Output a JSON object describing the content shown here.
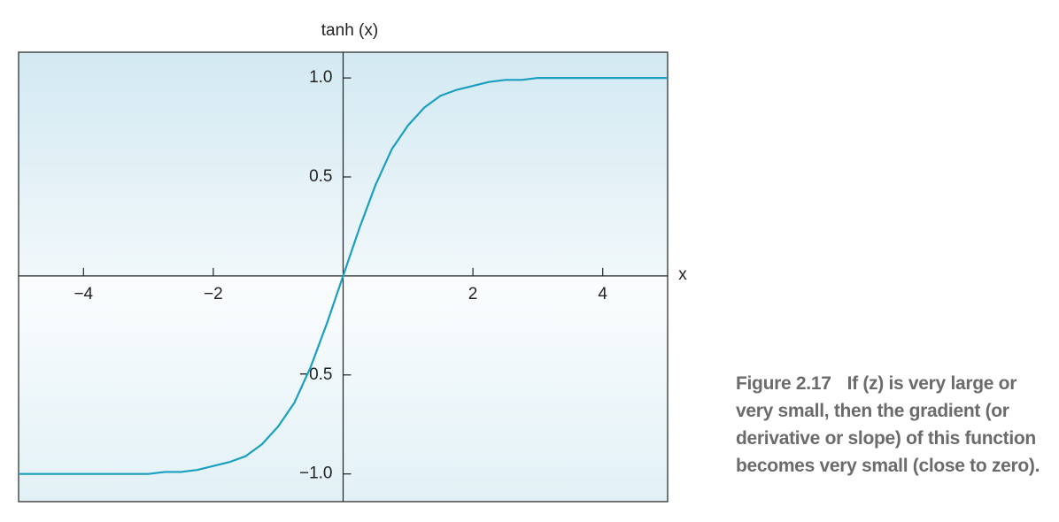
{
  "chart_data": {
    "type": "line",
    "y_label": "tanh (x)",
    "x_label": "x",
    "color": "#1a9fc0",
    "x": [
      -5,
      -4.75,
      -4.5,
      -4.25,
      -4,
      -3.75,
      -3.5,
      -3.25,
      -3,
      -2.75,
      -2.5,
      -2.25,
      -2,
      -1.75,
      -1.5,
      -1.25,
      -1,
      -0.75,
      -0.5,
      -0.25,
      0,
      0.25,
      0.5,
      0.75,
      1,
      1.25,
      1.5,
      1.75,
      2,
      2.25,
      2.5,
      2.75,
      3,
      3.25,
      3.5,
      3.75,
      4,
      4.25,
      4.5,
      4.75,
      5
    ],
    "values": [
      -1,
      -1,
      -1,
      -1,
      -1,
      -1,
      -1,
      -1,
      -1,
      -0.99,
      -0.99,
      -0.98,
      -0.96,
      -0.94,
      -0.91,
      -0.85,
      -0.76,
      -0.64,
      -0.46,
      -0.24,
      0,
      0.24,
      0.46,
      0.64,
      0.76,
      0.85,
      0.91,
      0.94,
      0.96,
      0.98,
      0.99,
      0.99,
      1,
      1,
      1,
      1,
      1,
      1,
      1,
      1,
      1
    ],
    "xlim": [
      -5,
      5
    ],
    "ylim": [
      -1.14,
      1.13
    ],
    "xticks": [
      {
        "value": -4,
        "label": "−4"
      },
      {
        "value": -2,
        "label": "−2"
      },
      2,
      4
    ],
    "yticks": [
      {
        "value": -1,
        "label": "−1.0"
      },
      {
        "value": -0.5,
        "label": "−0.5"
      },
      0.5,
      {
        "value": 1,
        "label": "1.0"
      }
    ],
    "caption": {
      "label": "Figure 2.17",
      "text": "If (z) is very large or very small, then the gradient (or derivative or slope) of this function becomes very small (close to zero)."
    }
  }
}
